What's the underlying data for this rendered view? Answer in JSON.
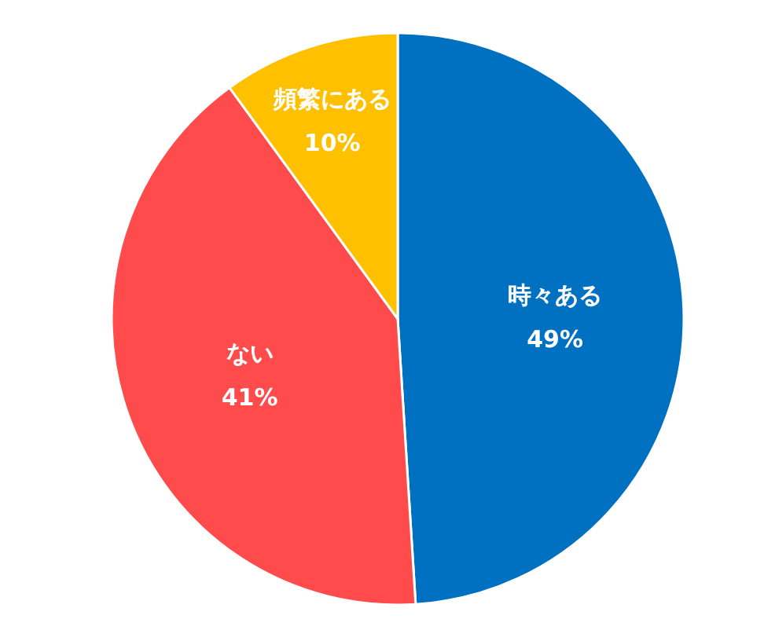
{
  "chart_data": {
    "type": "pie",
    "categories": [
      "時々ある",
      "ない",
      "頻繁にある"
    ],
    "values": [
      49,
      41,
      10
    ],
    "colors": [
      "#0070c0",
      "#ff4b4b",
      "#ffc000"
    ],
    "value_labels": [
      "49%",
      "41%",
      "10%"
    ]
  }
}
